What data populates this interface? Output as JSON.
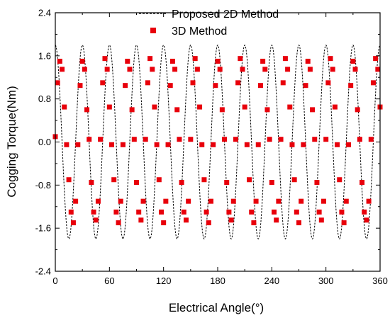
{
  "chart_data": {
    "type": "line",
    "title": "",
    "xlabel": "Electrical Angle(°)",
    "ylabel": "Cogging Torque(Nm)",
    "xlim": [
      0,
      360
    ],
    "ylim": [
      -2.4,
      2.4
    ],
    "xticks": [
      "0",
      "60",
      "120",
      "180",
      "240",
      "300",
      "360"
    ],
    "yticks": [
      "-2.4",
      "-1.6",
      "-0.8",
      "0.0",
      "0.8",
      "1.6",
      "2.4"
    ],
    "grid": false,
    "legend_position": "top-center",
    "series": [
      {
        "name": "Proposed 2D Method",
        "style": "dashed-line",
        "color": "#000000",
        "waveform": {
          "amplitude": 1.8,
          "period_deg": 30,
          "phase_shift_deg": -7.5,
          "offset": 0.0
        }
      },
      {
        "name": "3D Method",
        "style": "square-markers",
        "color": "#e8000b",
        "x": [
          0,
          2.5,
          5,
          7.5,
          10,
          12.5,
          15,
          17.5,
          20,
          22.5,
          25,
          27.5,
          30,
          32.5,
          35,
          37.5,
          40,
          42.5,
          45,
          47.5,
          50,
          52.5,
          55,
          57.5,
          60,
          62.5,
          65,
          67.5,
          70,
          72.5,
          75,
          77.5,
          80,
          82.5,
          85,
          87.5,
          90,
          92.5,
          95,
          97.5,
          100,
          102.5,
          105,
          107.5,
          110,
          112.5,
          115,
          117.5,
          120,
          122.5,
          125,
          127.5,
          130,
          132.5,
          135,
          137.5,
          140,
          142.5,
          145,
          147.5,
          150,
          152.5,
          155,
          157.5,
          160,
          162.5,
          165,
          167.5,
          170,
          172.5,
          175,
          177.5,
          180,
          182.5,
          185,
          187.5,
          190,
          192.5,
          195,
          197.5,
          200,
          202.5,
          205,
          207.5,
          210,
          212.5,
          215,
          217.5,
          220,
          222.5,
          225,
          227.5,
          230,
          232.5,
          235,
          237.5,
          240,
          242.5,
          245,
          247.5,
          250,
          252.5,
          255,
          257.5,
          260,
          262.5,
          265,
          267.5,
          270,
          272.5,
          275,
          277.5,
          280,
          282.5,
          285,
          287.5,
          290,
          292.5,
          295,
          297.5,
          300,
          302.5,
          305,
          307.5,
          310,
          312.5,
          315,
          317.5,
          320,
          322.5,
          325,
          327.5,
          330,
          332.5,
          335,
          337.5,
          340,
          342.5,
          345,
          347.5,
          350,
          352.5,
          355,
          357.5,
          360
        ],
        "y": [
          0.1,
          1.1,
          1.5,
          1.35,
          0.65,
          -0.05,
          -0.7,
          -1.3,
          -1.5,
          -1.1,
          -0.05,
          1.05,
          1.5,
          1.35,
          0.6,
          0.05,
          -0.75,
          -1.3,
          -1.45,
          -1.1,
          0.05,
          1.1,
          1.55,
          1.35,
          0.65,
          -0.05,
          -0.7,
          -1.3,
          -1.5,
          -1.1,
          -0.05,
          1.05,
          1.5,
          1.35,
          0.6,
          0.05,
          -0.75,
          -1.3,
          -1.45,
          -1.1,
          0.05,
          1.1,
          1.55,
          1.35,
          0.65,
          -0.05,
          -0.7,
          -1.3,
          -1.5,
          -1.1,
          -0.05,
          1.05,
          1.5,
          1.35,
          0.6,
          0.05,
          -0.75,
          -1.3,
          -1.45,
          -1.1,
          0.05,
          1.1,
          1.55,
          1.35,
          0.65,
          -0.05,
          -0.7,
          -1.3,
          -1.5,
          -1.1,
          -0.05,
          1.05,
          1.5,
          1.35,
          0.6,
          0.05,
          -0.75,
          -1.3,
          -1.45,
          -1.1,
          0.05,
          1.1,
          1.55,
          1.35,
          0.65,
          -0.05,
          -0.7,
          -1.3,
          -1.5,
          -1.1,
          -0.05,
          1.05,
          1.5,
          1.35,
          0.6,
          0.05,
          -0.75,
          -1.3,
          -1.45,
          -1.1,
          0.05,
          1.1,
          1.55,
          1.35,
          0.65,
          -0.05,
          -0.7,
          -1.3,
          -1.5,
          -1.1,
          -0.05,
          1.05,
          1.5,
          1.35,
          0.6,
          0.05,
          -0.75,
          -1.3,
          -1.45,
          -1.1,
          0.05,
          1.1,
          1.55,
          1.35,
          0.65,
          -0.05,
          -0.7,
          -1.3,
          -1.5,
          -1.1,
          -0.05,
          1.05,
          1.5,
          1.35,
          0.6,
          0.05,
          -0.75,
          -1.3,
          -1.45,
          -1.1,
          0.05,
          1.1,
          1.55,
          1.35,
          0.65
        ]
      }
    ]
  }
}
